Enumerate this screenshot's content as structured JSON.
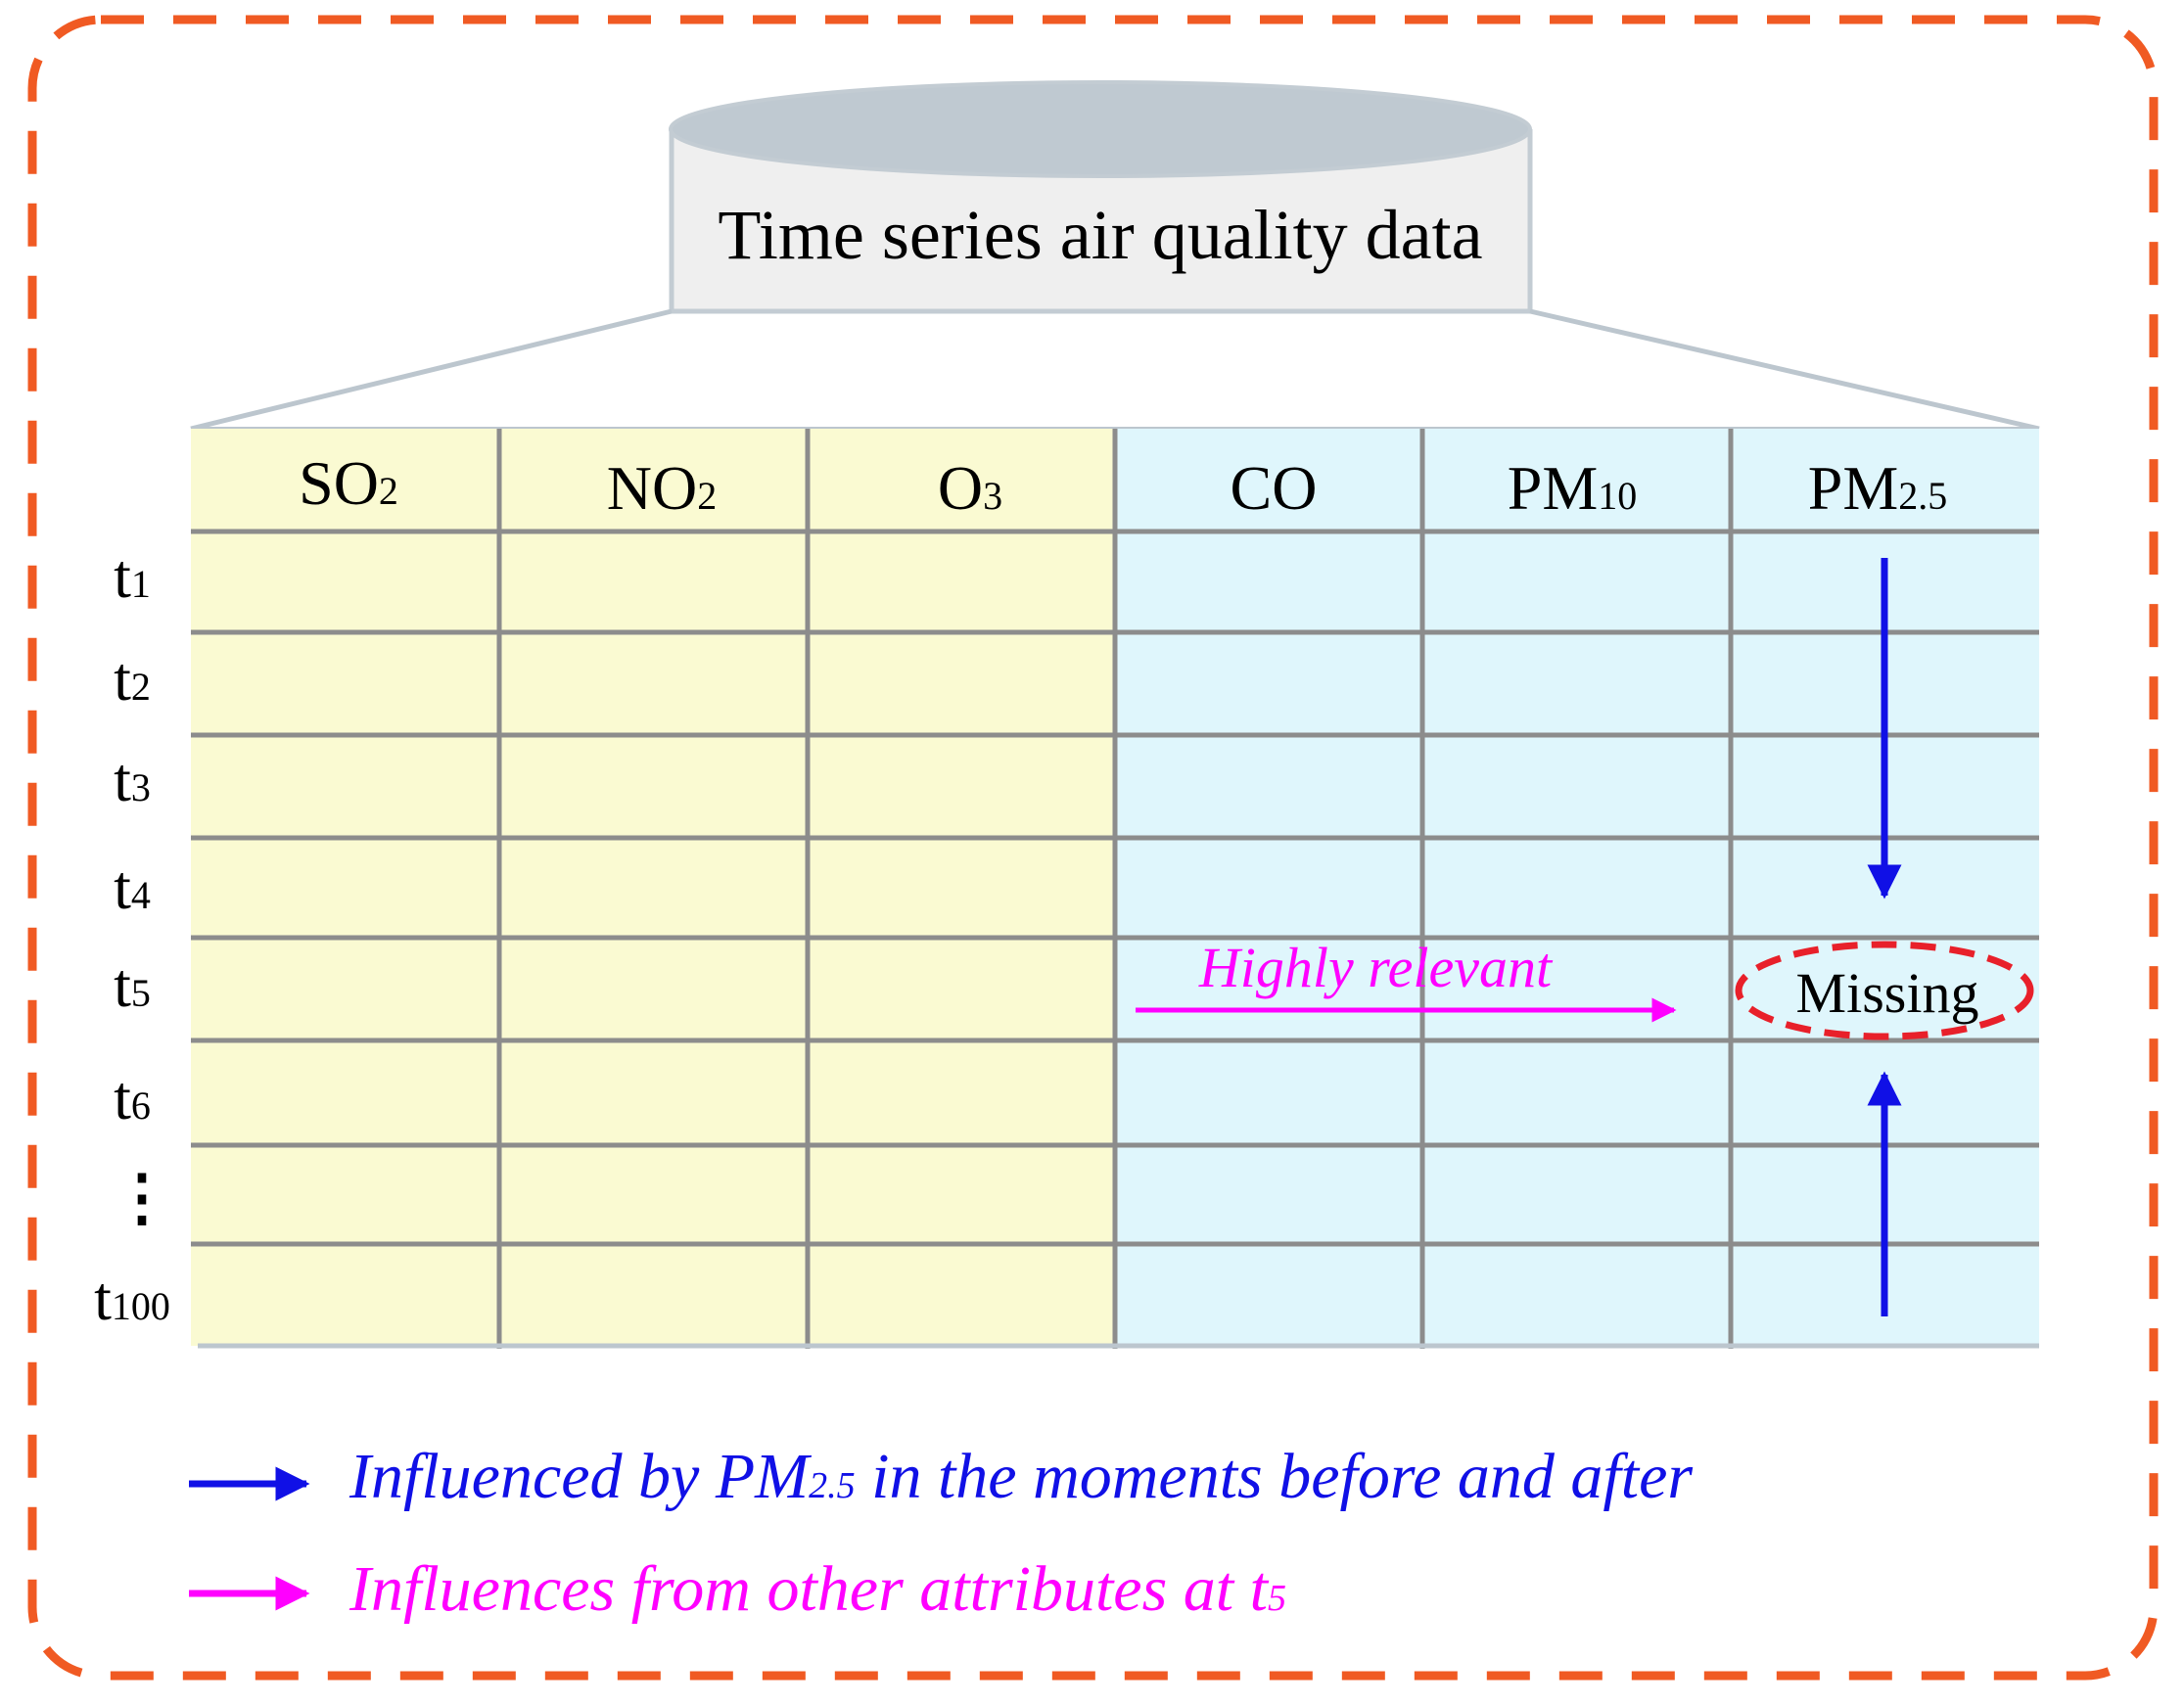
{
  "database": {
    "label": "Time series air quality data"
  },
  "columns": [
    {
      "main": "SO",
      "sub": "2"
    },
    {
      "main": "NO",
      "sub": "2"
    },
    {
      "main": "O",
      "sub": "3"
    },
    {
      "main": "CO",
      "sub": ""
    },
    {
      "main": "PM",
      "sub": "10"
    },
    {
      "main": "PM",
      "sub": "2.5"
    }
  ],
  "rows": [
    {
      "main": "t",
      "sub": "1"
    },
    {
      "main": "t",
      "sub": "2"
    },
    {
      "main": "t",
      "sub": "3"
    },
    {
      "main": "t",
      "sub": "4"
    },
    {
      "main": "t",
      "sub": "5"
    },
    {
      "main": "t",
      "sub": "6"
    },
    {
      "main": "⋮",
      "sub": ""
    },
    {
      "main": "t",
      "sub": "100"
    }
  ],
  "missing": {
    "label": "Missing"
  },
  "relevance": {
    "label": "Highly relevant"
  },
  "legend": [
    {
      "before": "Influenced by PM",
      "sub": "2.5",
      "after": " in the moments before and after",
      "color": "#1010e6"
    },
    {
      "before": "Influences from other attributes at t",
      "sub": "5",
      "after": "",
      "color": "#ff00ff"
    }
  ],
  "colors": {
    "frame": "#f05a23",
    "left_group": "#fafad2",
    "right_group": "#dff6fc",
    "grid": "#8c8c8c",
    "blue_arrow": "#1010e6",
    "magenta_arrow": "#ff00ff",
    "missing_ring": "#e8202a",
    "cylinder_top": "#bfc9d1",
    "cylinder_body": "#efefef"
  }
}
